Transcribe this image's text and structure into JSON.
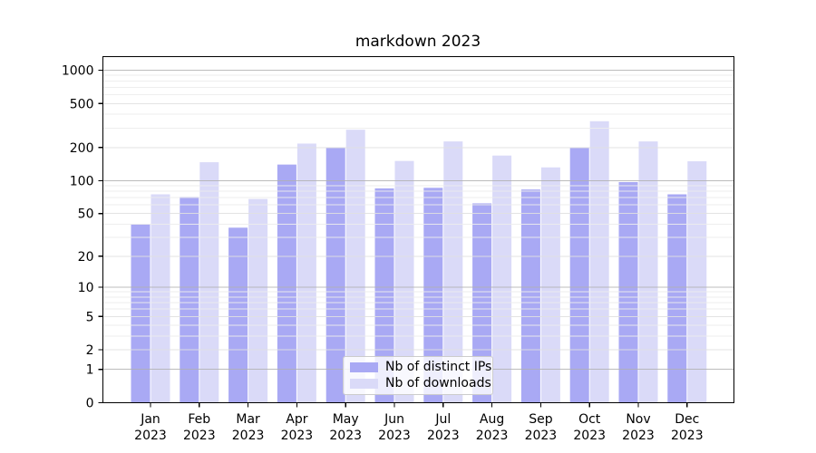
{
  "chart_data": {
    "type": "bar",
    "title": "markdown 2023",
    "categories": [
      "Jan",
      "Feb",
      "Mar",
      "Apr",
      "May",
      "Jun",
      "Jul",
      "Aug",
      "Sep",
      "Oct",
      "Nov",
      "Dec"
    ],
    "xtick_year": "2023",
    "series": [
      {
        "name": "Nb of distinct IPs",
        "color": "#a9a9f4",
        "values": [
          40,
          71,
          37,
          140,
          200,
          85,
          86,
          62,
          83,
          200,
          97,
          75
        ]
      },
      {
        "name": "Nb of downloads",
        "color": "#dadaf8",
        "values": [
          75,
          147,
          68,
          217,
          290,
          151,
          227,
          169,
          132,
          346,
          227,
          150
        ]
      }
    ],
    "yscale": "log1p",
    "yticks": [
      0,
      1,
      2,
      5,
      10,
      20,
      50,
      100,
      200,
      500,
      1000
    ],
    "ylim": [
      0,
      1320
    ],
    "grid": true,
    "legend_position": "lower center"
  },
  "colors": {
    "background": "#ffffff",
    "spine": "#000000",
    "tick_text": "#000000",
    "grid_decade": "#b0b0b0",
    "grid_labeled": "#e0e0e0",
    "grid_minor": "#ececec",
    "legend_border": "#cccccc"
  }
}
